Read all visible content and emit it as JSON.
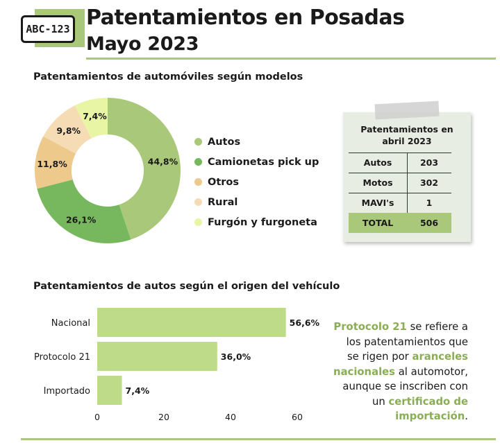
{
  "header": {
    "plate_text": "ABC-123",
    "title": "Patentamientos en Posadas",
    "subtitle": "Mayo 2023"
  },
  "colors": {
    "accent": "#a9c87a",
    "autos": "#a9c87a",
    "camionetas": "#77b85e",
    "otros": "#eec98c",
    "rural": "#f6dcb4",
    "furgon": "#e7f5a4",
    "text_highlight": "#8aae55"
  },
  "chart_data": [
    {
      "type": "pie",
      "title": "Patentamientos de automóviles según modelos",
      "donut": true,
      "legend_position": "right",
      "categories": [
        "Autos",
        "Camionetas pick up",
        "Otros",
        "Rural",
        "Furgón y furgoneta"
      ],
      "values": [
        44.8,
        26.1,
        11.8,
        9.8,
        7.4
      ],
      "labels": [
        "44,8%",
        "26,1%",
        "11,8%",
        "9,8%",
        "7,4%"
      ],
      "colors": [
        "#a9c87a",
        "#77b85e",
        "#eec98c",
        "#f6dcb4",
        "#e7f5a4"
      ]
    },
    {
      "type": "bar",
      "orientation": "horizontal",
      "title": "Patentamientos de autos según el origen del vehículo",
      "categories": [
        "Nacional",
        "Protocolo 21",
        "Importado"
      ],
      "values": [
        56.6,
        36.0,
        7.4
      ],
      "labels": [
        "56,6%",
        "36,0%",
        "7,4%"
      ],
      "xlim": [
        0,
        60
      ],
      "xticks": [
        0,
        20,
        40,
        60
      ],
      "grid": false,
      "color": "#bedb8a"
    }
  ],
  "april_table": {
    "title_line1": "Patentamientos en",
    "title_line2": "abril 2023",
    "rows": [
      {
        "label": "Autos",
        "value": "203"
      },
      {
        "label": "Motos",
        "value": "302"
      },
      {
        "label": "MAVI's",
        "value": "1"
      }
    ],
    "total": {
      "label": "TOTAL",
      "value": "506"
    }
  },
  "protocol_note": {
    "term": "Protocolo 21",
    "part1": " se refiere a los patentamientos que se rigen por ",
    "highlight1": "aranceles nacionales",
    "part2": " al automotor, aunque se inscriben con un ",
    "highlight2": "certificado de importación",
    "part3": "."
  }
}
